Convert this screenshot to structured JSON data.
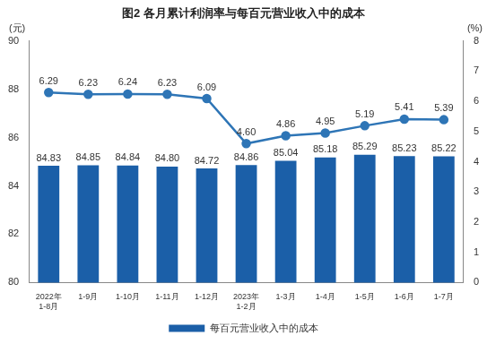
{
  "chart_data": {
    "type": "bar",
    "title": "图2 各月累计利润率与每百元营业收入中的成本",
    "ylabel": "(元)",
    "y2label": "(%)",
    "categories": [
      "2022年\n1-8月",
      "1-9月",
      "1-10月",
      "1-11月",
      "1-12月",
      "2023年\n1-2月",
      "1-3月",
      "1-4月",
      "1-5月",
      "1-6月",
      "1-7月"
    ],
    "series": [
      {
        "name": "每百元营业收入中的成本",
        "type": "bar",
        "color": "#1b5fa8",
        "values": [
          84.83,
          84.85,
          84.84,
          84.8,
          84.72,
          84.86,
          85.04,
          85.18,
          85.29,
          85.23,
          85.22
        ],
        "value_labels": [
          "84.83",
          "84.85",
          "84.84",
          "84.80",
          "84.72",
          "84.86",
          "85.04",
          "85.18",
          "85.29",
          "85.23",
          "85.22"
        ]
      },
      {
        "type": "line",
        "axis": "y2",
        "color": "#2e75b6",
        "marker": "circle",
        "values": [
          6.29,
          6.23,
          6.24,
          6.23,
          6.09,
          4.6,
          4.86,
          4.95,
          5.19,
          5.41,
          5.39
        ],
        "value_labels": [
          "6.29",
          "6.23",
          "6.24",
          "6.23",
          "6.09",
          "4.60",
          "4.86",
          "4.95",
          "5.19",
          "5.41",
          "5.39"
        ]
      }
    ],
    "ylim": [
      80,
      90
    ],
    "yticks": [
      80,
      82,
      84,
      86,
      88,
      90
    ],
    "y2lim": [
      0,
      8
    ],
    "y2ticks": [
      0,
      1,
      2,
      3,
      4,
      5,
      6,
      7,
      8
    ],
    "grid": false,
    "legend": "bottom",
    "data_labels": true
  }
}
